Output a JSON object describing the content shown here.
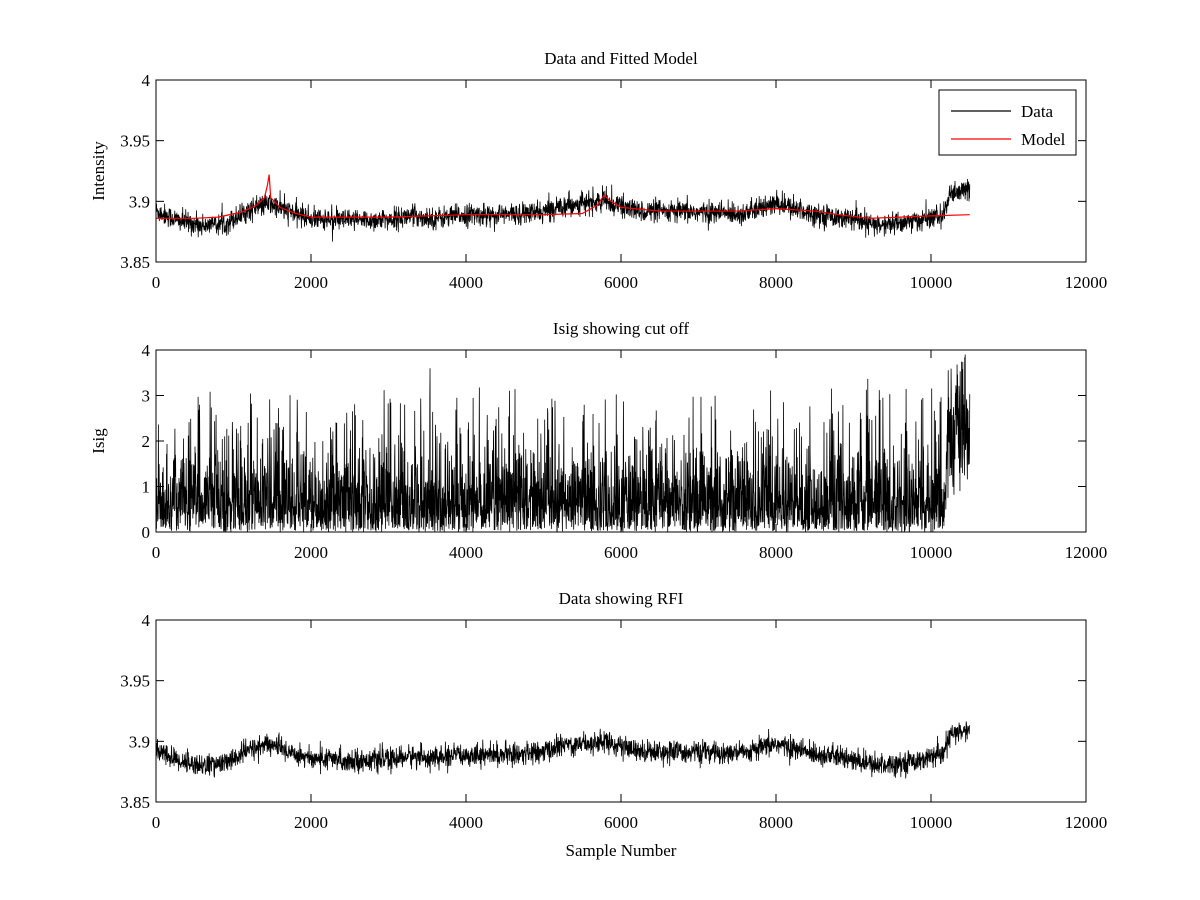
{
  "chart_data": [
    {
      "type": "line",
      "title": "Data and Fitted Model",
      "xlabel": "",
      "ylabel": "Intensity",
      "xlim": [
        0,
        12000
      ],
      "ylim": [
        3.85,
        4
      ],
      "xticks": [
        0,
        2000,
        4000,
        6000,
        8000,
        10000,
        12000
      ],
      "xtick_labels": [
        "0",
        "2000",
        "4000",
        "6000",
        "8000",
        "10000",
        "12000"
      ],
      "yticks": [
        3.85,
        3.9,
        3.95,
        4
      ],
      "ytick_labels": [
        "3.85",
        "3.9",
        "3.95",
        "4"
      ],
      "legend": {
        "position": "top-right",
        "entries": [
          "Data",
          "Model"
        ]
      },
      "grid": false,
      "series": [
        {
          "name": "Data",
          "color": "#000000",
          "x_range": [
            0,
            10500
          ],
          "baseline": [
            [
              0,
              3.892
            ],
            [
              300,
              3.884
            ],
            [
              600,
              3.88
            ],
            [
              900,
              3.882
            ],
            [
              1200,
              3.893
            ],
            [
              1450,
              3.898
            ],
            [
              1700,
              3.892
            ],
            [
              2000,
              3.886
            ],
            [
              2500,
              3.884
            ],
            [
              3000,
              3.885
            ],
            [
              3300,
              3.888
            ],
            [
              3600,
              3.886
            ],
            [
              4000,
              3.889
            ],
            [
              4500,
              3.889
            ],
            [
              5000,
              3.891
            ],
            [
              5250,
              3.897
            ],
            [
              5800,
              3.9
            ],
            [
              6200,
              3.892
            ],
            [
              7000,
              3.891
            ],
            [
              7600,
              3.89
            ],
            [
              8000,
              3.898
            ],
            [
              8400,
              3.891
            ],
            [
              8800,
              3.887
            ],
            [
              9300,
              3.88
            ],
            [
              9800,
              3.884
            ],
            [
              10150,
              3.888
            ],
            [
              10250,
              3.905
            ],
            [
              10500,
              3.91
            ]
          ],
          "noise_amplitude": 0.009
        },
        {
          "name": "Model",
          "color": "#ff0000",
          "points": [
            [
              0,
              3.886
            ],
            [
              500,
              3.886
            ],
            [
              800,
              3.887
            ],
            [
              1100,
              3.891
            ],
            [
              1300,
              3.897
            ],
            [
              1400,
              3.903
            ],
            [
              1440,
              3.914
            ],
            [
              1460,
              3.922
            ],
            [
              1480,
              3.903
            ],
            [
              1600,
              3.895
            ],
            [
              1800,
              3.89
            ],
            [
              2000,
              3.887
            ],
            [
              3000,
              3.887
            ],
            [
              4000,
              3.889
            ],
            [
              5000,
              3.889
            ],
            [
              5500,
              3.89
            ],
            [
              5700,
              3.897
            ],
            [
              5780,
              3.905
            ],
            [
              5850,
              3.901
            ],
            [
              6000,
              3.895
            ],
            [
              6500,
              3.892
            ],
            [
              7000,
              3.892
            ],
            [
              7500,
              3.892
            ],
            [
              8000,
              3.894
            ],
            [
              8500,
              3.892
            ],
            [
              8800,
              3.889
            ],
            [
              9200,
              3.886
            ],
            [
              9600,
              3.887
            ],
            [
              10000,
              3.888
            ],
            [
              10500,
              3.889
            ]
          ]
        }
      ]
    },
    {
      "type": "line",
      "title": "Isig showing cut off",
      "xlabel": "",
      "ylabel": "Isig",
      "xlim": [
        0,
        12000
      ],
      "ylim": [
        0,
        4
      ],
      "xticks": [
        0,
        2000,
        4000,
        6000,
        8000,
        10000,
        12000
      ],
      "xtick_labels": [
        "0",
        "2000",
        "4000",
        "6000",
        "8000",
        "10000",
        "12000"
      ],
      "yticks": [
        0,
        1,
        2,
        3,
        4
      ],
      "ytick_labels": [
        "0",
        "1",
        "2",
        "3",
        "4"
      ],
      "grid": false,
      "series": [
        {
          "color": "#000000",
          "x_range": [
            0,
            10500
          ],
          "segments": [
            {
              "x": [
                0,
                10200
              ],
              "mean": 0.8,
              "max": 3.6
            },
            {
              "x": [
                10200,
                10500
              ],
              "mean": 2.2,
              "max": 3.9
            }
          ]
        }
      ]
    },
    {
      "type": "line",
      "title": "Data showing RFI",
      "xlabel": "Sample Number",
      "ylabel": "",
      "xlim": [
        0,
        12000
      ],
      "ylim": [
        3.85,
        4
      ],
      "xticks": [
        0,
        2000,
        4000,
        6000,
        8000,
        10000,
        12000
      ],
      "xtick_labels": [
        "0",
        "2000",
        "4000",
        "6000",
        "8000",
        "10000",
        "12000"
      ],
      "yticks": [
        3.85,
        3.9,
        3.95,
        4
      ],
      "ytick_labels": [
        "3.85",
        "3.9",
        "3.95",
        "4"
      ],
      "grid": false,
      "series": [
        {
          "color": "#000000",
          "x_range": [
            0,
            10500
          ],
          "baseline": [
            [
              0,
              3.892
            ],
            [
              300,
              3.884
            ],
            [
              600,
              3.88
            ],
            [
              900,
              3.882
            ],
            [
              1200,
              3.893
            ],
            [
              1450,
              3.898
            ],
            [
              1700,
              3.892
            ],
            [
              2000,
              3.886
            ],
            [
              2500,
              3.884
            ],
            [
              3000,
              3.885
            ],
            [
              3300,
              3.888
            ],
            [
              3600,
              3.886
            ],
            [
              4000,
              3.889
            ],
            [
              4500,
              3.889
            ],
            [
              5000,
              3.891
            ],
            [
              5250,
              3.897
            ],
            [
              5800,
              3.9
            ],
            [
              6200,
              3.892
            ],
            [
              7000,
              3.891
            ],
            [
              7600,
              3.89
            ],
            [
              8000,
              3.898
            ],
            [
              8400,
              3.891
            ],
            [
              8800,
              3.887
            ],
            [
              9300,
              3.88
            ],
            [
              9800,
              3.884
            ],
            [
              10150,
              3.888
            ],
            [
              10250,
              3.905
            ],
            [
              10500,
              3.91
            ]
          ],
          "noise_amplitude": 0.009
        }
      ]
    }
  ]
}
